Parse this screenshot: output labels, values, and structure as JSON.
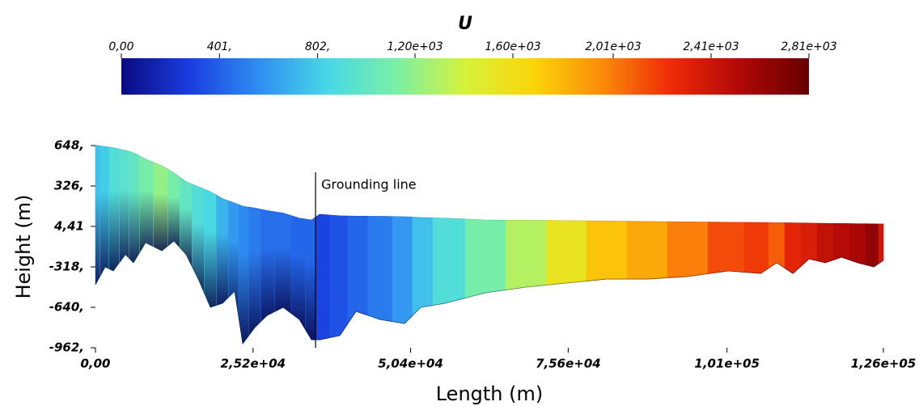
{
  "chart_data": {
    "type": "section",
    "colorbar": {
      "title": "U",
      "clim": [
        0,
        2810
      ],
      "ticks": [
        {
          "value": 0,
          "label": "0,00"
        },
        {
          "value": 401,
          "label": "401,"
        },
        {
          "value": 802,
          "label": "802,"
        },
        {
          "value": 1200,
          "label": "1,20e+03"
        },
        {
          "value": 1600,
          "label": "1,60e+03"
        },
        {
          "value": 2010,
          "label": "2,01e+03"
        },
        {
          "value": 2410,
          "label": "2,41e+03"
        },
        {
          "value": 2810,
          "label": "2,81e+03"
        }
      ]
    },
    "colormap": [
      "#0a0a82",
      "#1a3ee0",
      "#2f8ef2",
      "#48d8e6",
      "#7af0a4",
      "#d6f23a",
      "#fbd40a",
      "#fb8a0a",
      "#ee2a08",
      "#b00808",
      "#650000"
    ],
    "x_label": "Length (m)",
    "y_label": "Height (m)",
    "xlim": [
      0,
      126000
    ],
    "ylim": [
      -962,
      648
    ],
    "xticks": [
      {
        "value": 0,
        "label": "0,00"
      },
      {
        "value": 25200,
        "label": "2,52e+04"
      },
      {
        "value": 50400,
        "label": "5,04e+04"
      },
      {
        "value": 75600,
        "label": "7,56e+04"
      },
      {
        "value": 101000,
        "label": "1,01e+05"
      },
      {
        "value": 126000,
        "label": "1,26e+05"
      }
    ],
    "yticks": [
      {
        "value": 648,
        "label": "648,"
      },
      {
        "value": 326,
        "label": "326,"
      },
      {
        "value": 4.41,
        "label": "4,41"
      },
      {
        "value": -318,
        "label": "-318,"
      },
      {
        "value": -640,
        "label": "-640,"
      },
      {
        "value": -962,
        "label": "-962,"
      }
    ],
    "grounding_line": {
      "x": 35200,
      "label": "Grounding line"
    },
    "x": [
      0,
      1550,
      2850,
      4790,
      6080,
      8020,
      10610,
      12550,
      14490,
      16440,
      18380,
      20320,
      22260,
      23550,
      25490,
      27430,
      30020,
      32610,
      34550,
      35840,
      39080,
      41670,
      45550,
      49430,
      52020,
      55900,
      62370,
      68840,
      75310,
      81780,
      88250,
      94720,
      101190,
      106370,
      108950,
      111540,
      114130,
      116720,
      119310,
      121890,
      124480,
      126000
    ],
    "surface": [
      650,
      640,
      630,
      610,
      590,
      540,
      487,
      430,
      360,
      320,
      280,
      225,
      190,
      165,
      150,
      130,
      110,
      70,
      55,
      100,
      88,
      86,
      84,
      81,
      75,
      70,
      55,
      52,
      50,
      47,
      43,
      40,
      37,
      35,
      34,
      32,
      30,
      28,
      27,
      25,
      24,
      23
    ],
    "bed": [
      -460,
      -318,
      -350,
      -220,
      -285,
      -125,
      -190,
      -112,
      -220,
      -415,
      -640,
      -608,
      -511,
      -930,
      -800,
      -705,
      -640,
      -737,
      -898,
      -898,
      -865,
      -672,
      -737,
      -769,
      -640,
      -608,
      -524,
      -479,
      -447,
      -415,
      -415,
      -395,
      -350,
      -370,
      -285,
      -370,
      -254,
      -285,
      -241,
      -285,
      -318,
      -266
    ],
    "velocity": [
      750,
      800,
      900,
      950,
      1000,
      1100,
      1200,
      1100,
      1000,
      900,
      850,
      700,
      600,
      550,
      500,
      450,
      450,
      420,
      420,
      300,
      350,
      420,
      500,
      600,
      750,
      900,
      1100,
      1300,
      1550,
      1750,
      1850,
      2000,
      2150,
      2200,
      2100,
      2300,
      2350,
      2450,
      2500,
      2550,
      2650,
      2400
    ]
  }
}
